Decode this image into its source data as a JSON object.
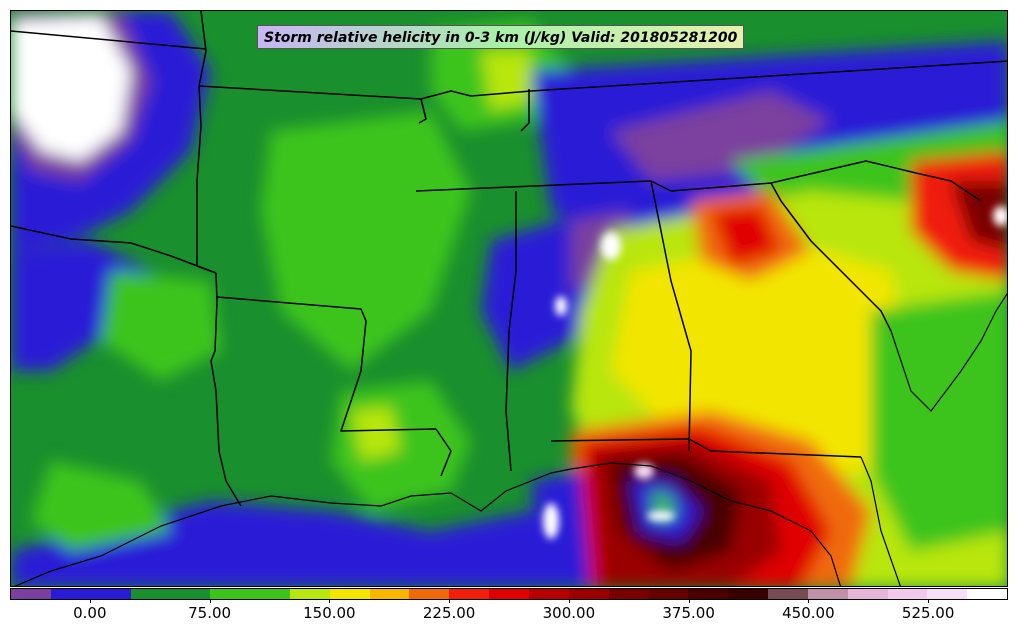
{
  "title": "Storm relative helicity in 0-3 km (J/kg) Valid: 201805281200",
  "colorbar": {
    "colors": [
      "#7b3f9e",
      "#2a1bd6",
      "#2a1bd6",
      "#1a8f2e",
      "#1a8f2e",
      "#3cc41a",
      "#3cc41a",
      "#b8e60f",
      "#f2e600",
      "#f7b600",
      "#f06a0a",
      "#f01e0a",
      "#e00000",
      "#b80000",
      "#9a0000",
      "#7a0000",
      "#650000",
      "#4a0000",
      "#380000",
      "#7a4a55",
      "#c08fa8",
      "#e8b4d8",
      "#f2c9ea",
      "#f7dff5",
      "#ffffff"
    ],
    "ticks": [
      {
        "label": "0.00",
        "frac": 0.08
      },
      {
        "label": "75.00",
        "frac": 0.2
      },
      {
        "label": "150.00",
        "frac": 0.32
      },
      {
        "label": "225.00",
        "frac": 0.44
      },
      {
        "label": "300.00",
        "frac": 0.56
      },
      {
        "label": "375.00",
        "frac": 0.68
      },
      {
        "label": "450.00",
        "frac": 0.8
      },
      {
        "label": "525.00",
        "frac": 0.92
      }
    ]
  }
}
